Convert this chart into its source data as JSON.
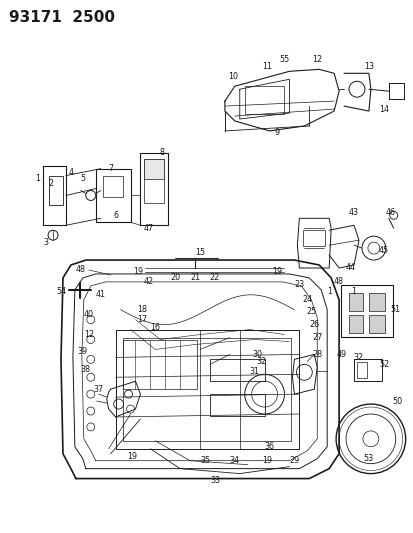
{
  "title": "93171  2500",
  "bg_color": "#ffffff",
  "line_color": "#1a1a1a",
  "fig_width": 4.14,
  "fig_height": 5.33,
  "dpi": 100,
  "title_fontsize": 11,
  "label_fontsize": 5.8
}
